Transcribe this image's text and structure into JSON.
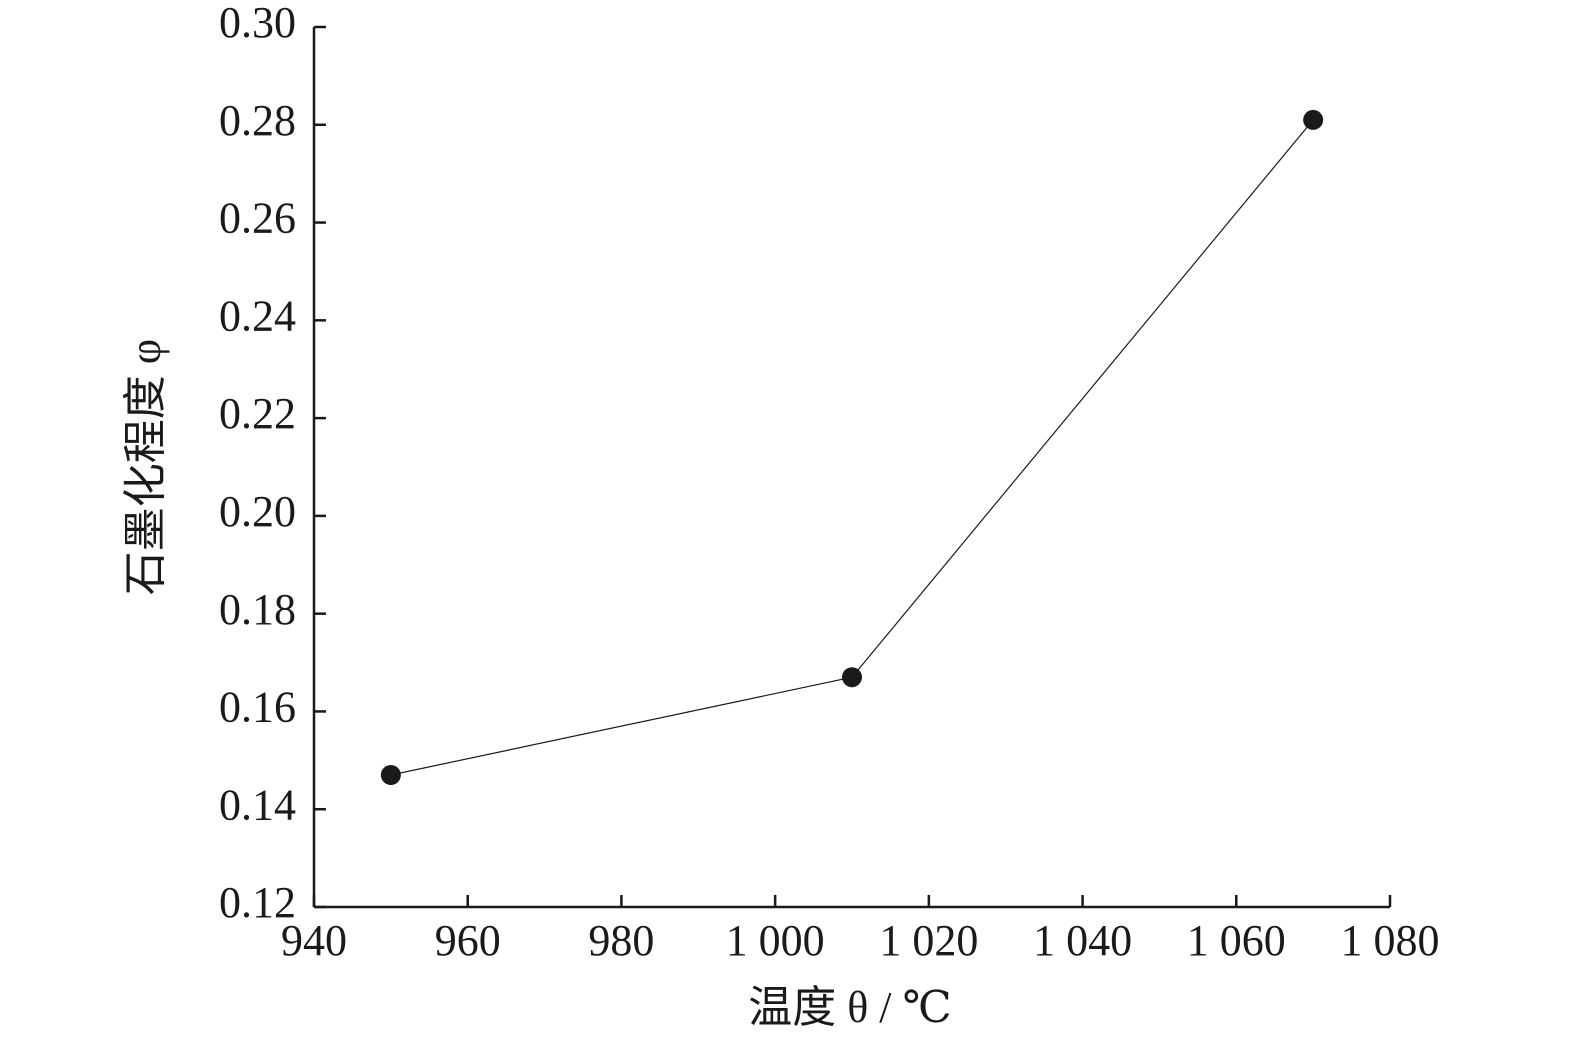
{
  "chart_data": {
    "type": "line",
    "x_label": "温度 θ / ℃",
    "y_label": "石墨化程度 φ",
    "x": [
      950,
      1010,
      1070
    ],
    "series": [
      {
        "color": "#1a1a1a",
        "values": [
          0.147,
          0.167,
          0.281
        ]
      }
    ],
    "xlim": [
      940,
      1080
    ],
    "xticks": [
      940,
      960,
      980,
      {
        "value": 1000,
        "label": "1 000"
      },
      {
        "value": 1020,
        "label": "1 020"
      },
      {
        "value": 1040,
        "label": "1 040"
      },
      {
        "value": 1060,
        "label": "1 060"
      },
      {
        "value": 1080,
        "label": "1 080"
      }
    ],
    "ylim": [
      0.12,
      0.3
    ],
    "yticks": [
      0.12,
      0.14,
      0.16,
      0.18,
      {
        "value": 0.2,
        "label": "0.20"
      },
      0.22,
      0.24,
      0.26,
      0.28,
      {
        "value": 0.3,
        "label": "0.30"
      }
    ],
    "grid": false
  }
}
